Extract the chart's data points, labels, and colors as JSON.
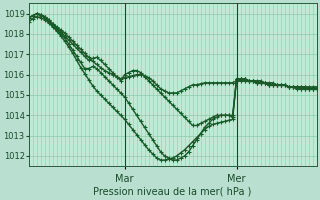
{
  "xlabel": "Pression niveau de la mer( hPa )",
  "ylim": [
    1011.5,
    1019.5
  ],
  "yticks": [
    1012,
    1013,
    1014,
    1015,
    1016,
    1017,
    1018,
    1019
  ],
  "bg_color": "#b8dfd0",
  "plot_bg_color": "#c0ead8",
  "line_color": "#1a5a28",
  "grid_color_h": "#90c8a8",
  "grid_color_v": "#e8a0a0",
  "marker": "+",
  "markersize": 3,
  "linewidth": 1.0,
  "n_points": 73,
  "mar_tick_idx": 24,
  "mer_tick_idx": 52,
  "series": [
    [
      1018.8,
      1018.9,
      1019.0,
      1018.9,
      1018.8,
      1018.6,
      1018.4,
      1018.2,
      1018.0,
      1017.8,
      1017.5,
      1017.2,
      1016.9,
      1016.6,
      1016.3,
      1016.3,
      1016.4,
      1016.3,
      1016.1,
      1015.9,
      1015.7,
      1015.5,
      1015.3,
      1015.1,
      1014.9,
      1014.6,
      1014.3,
      1014.0,
      1013.7,
      1013.4,
      1013.1,
      1012.8,
      1012.5,
      1012.2,
      1012.0,
      1011.9,
      1011.8,
      1011.8,
      1011.9,
      1012.0,
      1012.2,
      1012.5,
      1012.8,
      1013.1,
      1013.4,
      1013.6,
      1013.8,
      1013.9,
      1014.0,
      1014.0,
      1014.0,
      1013.9,
      1015.8,
      1015.8,
      1015.8,
      1015.7,
      1015.7,
      1015.7,
      1015.7,
      1015.6,
      1015.6,
      1015.6,
      1015.5,
      1015.5,
      1015.5,
      1015.4,
      1015.4,
      1015.4,
      1015.4,
      1015.4,
      1015.3,
      1015.3,
      1015.3
    ],
    [
      1018.8,
      1018.9,
      1019.0,
      1018.95,
      1018.85,
      1018.7,
      1018.5,
      1018.3,
      1018.1,
      1017.9,
      1017.7,
      1017.5,
      1017.3,
      1017.1,
      1016.9,
      1016.7,
      1016.8,
      1016.85,
      1016.7,
      1016.5,
      1016.3,
      1016.1,
      1015.9,
      1015.7,
      1016.0,
      1016.1,
      1016.2,
      1016.2,
      1016.1,
      1015.9,
      1015.7,
      1015.5,
      1015.3,
      1015.1,
      1014.9,
      1014.7,
      1014.5,
      1014.3,
      1014.1,
      1013.9,
      1013.7,
      1013.5,
      1013.5,
      1013.6,
      1013.7,
      1013.8,
      1013.9,
      1014.0,
      1014.0,
      1014.0,
      1014.0,
      1014.0,
      1015.8,
      1015.8,
      1015.8,
      1015.7,
      1015.7,
      1015.6,
      1015.6,
      1015.6,
      1015.5,
      1015.5,
      1015.5,
      1015.5,
      1015.5,
      1015.4,
      1015.4,
      1015.3,
      1015.3,
      1015.3,
      1015.3,
      1015.3,
      1015.3
    ],
    [
      1018.8,
      1018.9,
      1019.0,
      1018.95,
      1018.85,
      1018.7,
      1018.5,
      1018.35,
      1018.2,
      1018.05,
      1017.85,
      1017.65,
      1017.45,
      1017.25,
      1017.05,
      1016.85,
      1016.65,
      1016.5,
      1016.35,
      1016.2,
      1016.1,
      1016.0,
      1015.9,
      1015.8,
      1015.85,
      1015.9,
      1015.95,
      1016.0,
      1016.0,
      1015.95,
      1015.85,
      1015.7,
      1015.5,
      1015.3,
      1015.2,
      1015.1,
      1015.1,
      1015.1,
      1015.2,
      1015.3,
      1015.4,
      1015.5,
      1015.5,
      1015.55,
      1015.6,
      1015.6,
      1015.6,
      1015.6,
      1015.6,
      1015.6,
      1015.6,
      1015.6,
      1015.7,
      1015.7,
      1015.7,
      1015.7,
      1015.7,
      1015.6,
      1015.6,
      1015.6,
      1015.5,
      1015.5,
      1015.5,
      1015.5,
      1015.5,
      1015.4,
      1015.4,
      1015.4,
      1015.4,
      1015.4,
      1015.4,
      1015.4,
      1015.4
    ],
    [
      1018.6,
      1018.75,
      1018.85,
      1018.8,
      1018.7,
      1018.55,
      1018.35,
      1018.15,
      1017.9,
      1017.65,
      1017.35,
      1017.05,
      1016.7,
      1016.35,
      1016.05,
      1015.75,
      1015.45,
      1015.2,
      1015.0,
      1014.8,
      1014.6,
      1014.4,
      1014.2,
      1014.0,
      1013.8,
      1013.55,
      1013.3,
      1013.05,
      1012.8,
      1012.55,
      1012.3,
      1012.1,
      1011.9,
      1011.8,
      1011.8,
      1011.85,
      1011.9,
      1012.0,
      1012.15,
      1012.3,
      1012.5,
      1012.7,
      1012.9,
      1013.1,
      1013.3,
      1013.45,
      1013.55,
      1013.6,
      1013.65,
      1013.7,
      1013.75,
      1013.8,
      1015.8,
      1015.8,
      1015.8,
      1015.7,
      1015.7,
      1015.6,
      1015.6,
      1015.6,
      1015.5,
      1015.5,
      1015.5,
      1015.5,
      1015.5,
      1015.4,
      1015.4,
      1015.4,
      1015.3,
      1015.3,
      1015.3,
      1015.3,
      1015.3
    ]
  ]
}
